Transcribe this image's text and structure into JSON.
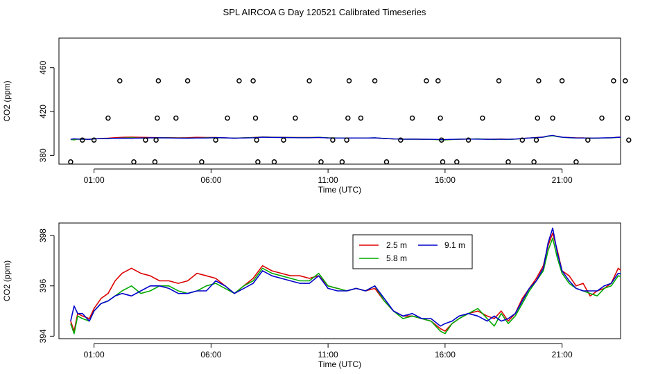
{
  "title": "SPL AIRCOA G  Day 120521  Calibrated Timeseries",
  "chart_data": [
    {
      "type": "scatter+line",
      "xlabel": "Time (UTC)",
      "ylabel": "CO2 (ppm)",
      "xlim": [
        -0.5,
        23.5
      ],
      "ylim": [
        372,
        487
      ],
      "x_ticks": [
        1,
        6,
        11,
        16,
        21
      ],
      "x_tick_labels": [
        "01:00",
        "06:00",
        "11:00",
        "16:00",
        "21:00"
      ],
      "y_ticks": [
        380,
        420,
        460
      ],
      "y_tick_labels": [
        "380",
        "420",
        "460"
      ],
      "points": {
        "x": [
          0.0,
          0.5,
          1.0,
          1.6,
          2.1,
          2.7,
          3.2,
          3.6,
          3.65,
          3.7,
          3.75,
          4.5,
          5.0,
          5.6,
          6.2,
          6.7,
          7.2,
          7.8,
          7.9,
          7.95,
          8.0,
          8.7,
          9.1,
          9.6,
          10.2,
          10.7,
          11.2,
          11.6,
          11.8,
          11.85,
          11.9,
          12.4,
          13.0,
          13.5,
          14.1,
          14.6,
          15.2,
          15.7,
          15.8,
          15.85,
          15.9,
          16.5,
          17.0,
          17.6,
          18.3,
          18.7,
          19.3,
          19.8,
          19.9,
          19.95,
          20.0,
          20.6,
          21.0,
          21.6,
          22.1,
          22.7,
          23.2,
          23.7,
          23.8,
          23.85
        ],
        "y": [
          374,
          394,
          394,
          414,
          448,
          374,
          394,
          374,
          394,
          414,
          448,
          414,
          448,
          374,
          394,
          414,
          448,
          448,
          414,
          394,
          374,
          374,
          394,
          414,
          448,
          374,
          394,
          374,
          394,
          414,
          448,
          414,
          448,
          374,
          394,
          414,
          448,
          448,
          414,
          394,
          374,
          374,
          394,
          414,
          448,
          374,
          394,
          374,
          394,
          414,
          448,
          414,
          448,
          374,
          394,
          414,
          448,
          448,
          414,
          394
        ]
      },
      "series": [
        {
          "name": "2.5 m",
          "color": "#dd0000"
        },
        {
          "name": "5.8 m",
          "color": "#00aa00"
        },
        {
          "name": "9.1 m",
          "color": "#0000cc"
        }
      ],
      "note": "lines share the series data of panel 2"
    },
    {
      "type": "line",
      "xlabel": "Time (UTC)",
      "ylabel": "CO2 (ppm)",
      "xlim": [
        -0.5,
        23.5
      ],
      "ylim": [
        393.9,
        398.5
      ],
      "x_ticks": [
        1,
        6,
        11,
        16,
        21
      ],
      "x_tick_labels": [
        "01:00",
        "06:00",
        "11:00",
        "16:00",
        "21:00"
      ],
      "y_ticks": [
        394,
        396,
        398
      ],
      "y_tick_labels": [
        "394",
        "396",
        "398"
      ],
      "legend": {
        "position": "top-center",
        "entries": [
          {
            "name": "2.5 m",
            "color": "#dd0000"
          },
          {
            "name": "5.8 m",
            "color": "#00aa00"
          },
          {
            "name": "9.1 m",
            "color": "#0000cc"
          }
        ]
      },
      "series": [
        {
          "name": "2.5 m",
          "color": "#dd0000",
          "x": [
            0.0,
            0.15,
            0.3,
            0.5,
            0.8,
            1.0,
            1.3,
            1.6,
            1.9,
            2.2,
            2.6,
            3.0,
            3.4,
            3.8,
            4.2,
            4.6,
            5.0,
            5.4,
            5.8,
            6.2,
            6.6,
            7.0,
            7.4,
            7.8,
            8.2,
            8.6,
            9.0,
            9.4,
            9.8,
            10.2,
            10.6,
            11.0,
            11.4,
            11.8,
            12.2,
            12.6,
            13.0,
            13.4,
            13.8,
            14.2,
            14.6,
            15.0,
            15.4,
            15.8,
            16.0,
            16.3,
            16.6,
            17.0,
            17.4,
            17.8,
            18.1,
            18.4,
            18.7,
            19.0,
            19.3,
            19.6,
            19.9,
            20.2,
            20.4,
            20.6,
            20.8,
            21.0,
            21.3,
            21.6,
            21.9,
            22.2,
            22.5,
            22.8,
            23.1,
            23.4,
            23.8
          ],
          "y": [
            394.6,
            394.2,
            394.9,
            394.8,
            394.7,
            395.1,
            395.5,
            395.7,
            396.2,
            396.5,
            396.7,
            396.5,
            396.4,
            396.2,
            396.2,
            396.1,
            396.2,
            396.5,
            396.4,
            396.3,
            396.0,
            395.7,
            396.0,
            396.3,
            396.8,
            396.6,
            396.5,
            396.4,
            396.4,
            396.3,
            396.4,
            396.0,
            395.9,
            395.8,
            395.9,
            395.8,
            395.9,
            395.4,
            395.0,
            394.8,
            394.8,
            394.7,
            394.6,
            394.3,
            394.2,
            394.5,
            394.7,
            394.9,
            395.0,
            394.8,
            394.7,
            395.0,
            394.6,
            394.9,
            395.5,
            395.9,
            396.3,
            396.8,
            397.6,
            398.1,
            397.4,
            396.6,
            396.4,
            396.0,
            396.1,
            395.6,
            395.8,
            395.9,
            396.1,
            396.7,
            396.4
          ]
        },
        {
          "name": "5.8 m",
          "color": "#00aa00",
          "x": [
            0.0,
            0.15,
            0.3,
            0.5,
            0.8,
            1.0,
            1.3,
            1.6,
            1.9,
            2.2,
            2.6,
            3.0,
            3.4,
            3.8,
            4.2,
            4.6,
            5.0,
            5.4,
            5.8,
            6.2,
            6.6,
            7.0,
            7.4,
            7.8,
            8.2,
            8.6,
            9.0,
            9.4,
            9.8,
            10.2,
            10.6,
            11.0,
            11.4,
            11.8,
            12.2,
            12.6,
            13.0,
            13.4,
            13.8,
            14.2,
            14.6,
            15.0,
            15.4,
            15.8,
            16.0,
            16.3,
            16.6,
            17.0,
            17.4,
            17.8,
            18.1,
            18.4,
            18.7,
            19.0,
            19.3,
            19.6,
            19.9,
            20.2,
            20.4,
            20.6,
            20.8,
            21.0,
            21.3,
            21.6,
            21.9,
            22.2,
            22.5,
            22.8,
            23.1,
            23.4,
            23.8
          ],
          "y": [
            394.5,
            394.1,
            394.8,
            394.7,
            394.6,
            395.0,
            395.3,
            395.4,
            395.6,
            395.8,
            396.0,
            395.7,
            395.8,
            396.0,
            396.0,
            395.8,
            395.7,
            395.8,
            396.0,
            396.1,
            395.9,
            395.7,
            396.0,
            396.2,
            396.7,
            396.5,
            396.4,
            396.3,
            396.2,
            396.2,
            396.5,
            396.0,
            395.9,
            395.8,
            395.9,
            395.8,
            396.0,
            395.4,
            395.0,
            394.7,
            394.8,
            394.7,
            394.6,
            394.2,
            394.1,
            394.5,
            394.7,
            394.9,
            395.1,
            394.7,
            394.4,
            394.9,
            394.5,
            394.8,
            395.3,
            395.8,
            396.2,
            396.6,
            397.4,
            397.9,
            397.1,
            396.5,
            396.1,
            395.9,
            395.8,
            395.7,
            395.6,
            395.9,
            396.0,
            396.4,
            396.3
          ]
        },
        {
          "name": "9.1 m",
          "color": "#0000cc",
          "x": [
            0.0,
            0.15,
            0.3,
            0.5,
            0.8,
            1.0,
            1.3,
            1.6,
            1.9,
            2.2,
            2.6,
            3.0,
            3.4,
            3.8,
            4.2,
            4.6,
            5.0,
            5.4,
            5.8,
            6.2,
            6.6,
            7.0,
            7.4,
            7.8,
            8.2,
            8.6,
            9.0,
            9.4,
            9.8,
            10.2,
            10.6,
            11.0,
            11.4,
            11.8,
            12.2,
            12.6,
            13.0,
            13.4,
            13.8,
            14.2,
            14.6,
            15.0,
            15.4,
            15.8,
            16.0,
            16.3,
            16.6,
            17.0,
            17.4,
            17.8,
            18.1,
            18.4,
            18.7,
            19.0,
            19.3,
            19.6,
            19.9,
            20.2,
            20.4,
            20.6,
            20.8,
            21.0,
            21.3,
            21.6,
            21.9,
            22.2,
            22.5,
            22.8,
            23.1,
            23.4,
            23.8
          ],
          "y": [
            394.6,
            395.2,
            394.9,
            394.9,
            394.6,
            395.0,
            395.3,
            395.4,
            395.6,
            395.7,
            395.6,
            395.8,
            396.0,
            396.0,
            395.9,
            395.7,
            395.7,
            395.8,
            395.8,
            396.2,
            396.0,
            395.7,
            395.9,
            396.1,
            396.6,
            396.4,
            396.3,
            396.2,
            396.1,
            396.1,
            396.4,
            395.9,
            395.8,
            395.8,
            395.9,
            395.8,
            396.0,
            395.5,
            395.0,
            394.8,
            394.9,
            394.7,
            394.7,
            394.4,
            394.5,
            394.6,
            394.8,
            394.9,
            394.8,
            394.6,
            394.8,
            394.6,
            394.7,
            394.9,
            395.4,
            395.9,
            396.2,
            396.7,
            397.7,
            398.3,
            397.3,
            396.6,
            396.2,
            395.9,
            395.8,
            395.8,
            395.8,
            396.0,
            396.1,
            396.5,
            396.4
          ]
        }
      ]
    }
  ]
}
